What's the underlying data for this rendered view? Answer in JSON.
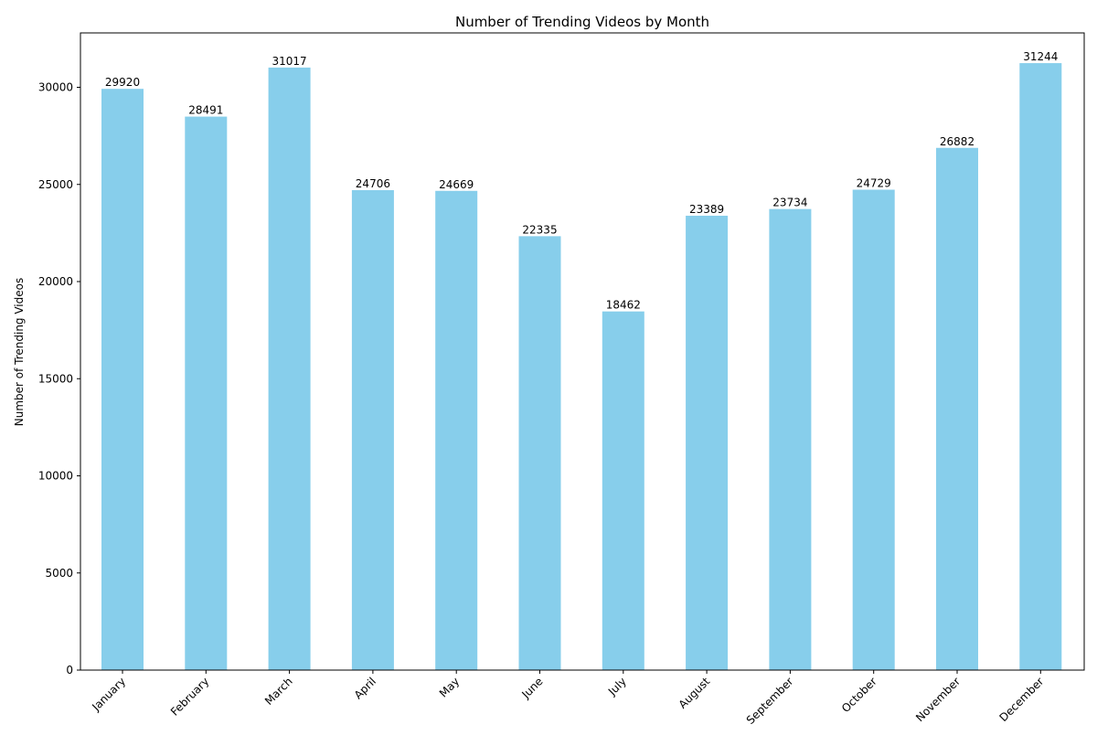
{
  "chart_data": {
    "type": "bar",
    "title": "Number of Trending Videos by Month",
    "xlabel": "",
    "ylabel": "Number of Trending Videos",
    "categories": [
      "January",
      "February",
      "March",
      "April",
      "May",
      "June",
      "July",
      "August",
      "September",
      "October",
      "November",
      "December"
    ],
    "values": [
      29920,
      28491,
      31017,
      24706,
      24669,
      22335,
      18462,
      23389,
      23734,
      24729,
      26882,
      31244
    ],
    "ylim": [
      0,
      32800
    ],
    "yticks": [
      0,
      5000,
      10000,
      15000,
      20000,
      25000,
      30000
    ],
    "bar_color": "#87CEEB",
    "grid": false,
    "legend": "none",
    "data_labels": true
  }
}
